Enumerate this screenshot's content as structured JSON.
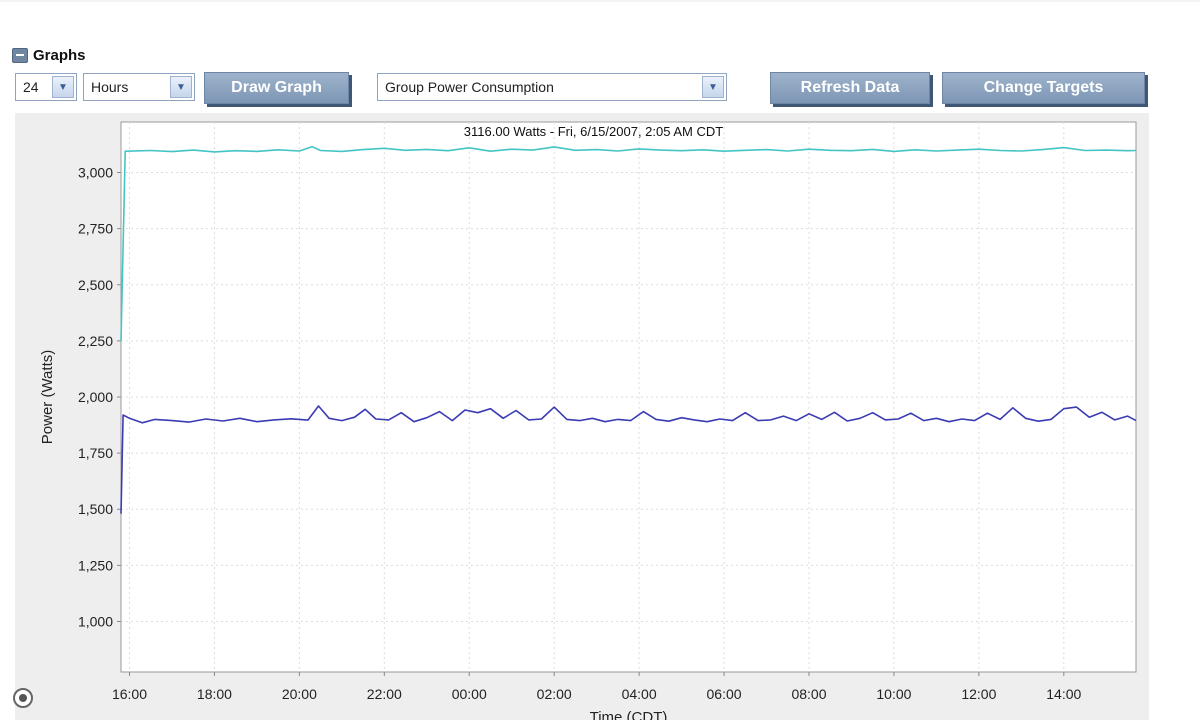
{
  "section": {
    "title": "Graphs",
    "collapse_icon": "minus-icon"
  },
  "controls": {
    "duration_value": "24",
    "unit_value": "Hours",
    "draw_graph_label": "Draw Graph",
    "graph_type_value": "Group Power Consumption",
    "refresh_label": "Refresh Data",
    "change_targets_label": "Change Targets",
    "dropdown_icon": "chevron-down-icon"
  },
  "chart_data": {
    "type": "line",
    "title": "3116.00 Watts - Fri, 6/15/2007, 2:05 AM CDT",
    "xlabel": "Time (CDT)",
    "ylabel": "Power (Watts)",
    "ylim": [
      775,
      3225
    ],
    "yticks": [
      1000,
      1250,
      1500,
      1750,
      2000,
      2250,
      2500,
      2750,
      3000
    ],
    "ytick_labels": [
      "1,000",
      "1,250",
      "1,500",
      "1,750",
      "2,000",
      "2,250",
      "2,500",
      "2,750",
      "3,000"
    ],
    "xlim": [
      15.8,
      39.7
    ],
    "xticks": [
      16,
      18,
      20,
      22,
      24,
      26,
      28,
      30,
      32,
      34,
      36,
      38
    ],
    "xtick_labels": [
      "16:00",
      "18:00",
      "20:00",
      "22:00",
      "00:00",
      "02:00",
      "04:00",
      "06:00",
      "08:00",
      "10:00",
      "12:00",
      "14:00"
    ],
    "grid": true,
    "series": [
      {
        "color": "#45c4c4",
        "x": [
          15.8,
          15.9,
          16.5,
          17.0,
          17.5,
          18.0,
          18.5,
          19.0,
          19.5,
          20.0,
          20.3,
          20.5,
          21.0,
          21.5,
          22.0,
          22.5,
          23.0,
          23.5,
          24.0,
          24.5,
          25.0,
          25.5,
          26.0,
          26.5,
          27.0,
          27.5,
          28.0,
          28.5,
          29.0,
          29.5,
          30.0,
          30.5,
          31.0,
          31.5,
          32.0,
          32.5,
          33.0,
          33.5,
          34.0,
          34.5,
          35.0,
          35.5,
          36.0,
          36.5,
          37.0,
          37.5,
          38.0,
          38.5,
          39.0,
          39.5,
          39.7
        ],
        "values": [
          2250,
          3095,
          3098,
          3093,
          3100,
          3092,
          3097,
          3094,
          3101,
          3096,
          3115,
          3098,
          3094,
          3102,
          3108,
          3099,
          3103,
          3097,
          3110,
          3095,
          3104,
          3100,
          3114,
          3099,
          3102,
          3096,
          3105,
          3100,
          3097,
          3101,
          3095,
          3099,
          3102,
          3096,
          3104,
          3099,
          3097,
          3103,
          3094,
          3101,
          3096,
          3100,
          3104,
          3098,
          3096,
          3102,
          3111,
          3098,
          3100,
          3097,
          3098
        ]
      },
      {
        "color": "#3b3bb3",
        "x": [
          15.8,
          15.85,
          16.0,
          16.3,
          16.6,
          17.0,
          17.4,
          17.8,
          18.2,
          18.6,
          19.0,
          19.4,
          19.8,
          20.2,
          20.45,
          20.7,
          21.0,
          21.3,
          21.55,
          21.8,
          22.1,
          22.4,
          22.7,
          23.0,
          23.3,
          23.6,
          23.9,
          24.2,
          24.5,
          24.8,
          25.1,
          25.4,
          25.7,
          26.0,
          26.3,
          26.6,
          26.9,
          27.2,
          27.5,
          27.8,
          28.1,
          28.4,
          28.7,
          29.0,
          29.3,
          29.6,
          29.9,
          30.2,
          30.5,
          30.8,
          31.1,
          31.4,
          31.7,
          32.0,
          32.3,
          32.6,
          32.9,
          33.2,
          33.5,
          33.8,
          34.1,
          34.4,
          34.7,
          35.0,
          35.3,
          35.6,
          35.9,
          36.2,
          36.5,
          36.8,
          37.1,
          37.4,
          37.7,
          38.0,
          38.3,
          38.6,
          38.9,
          39.2,
          39.5,
          39.7
        ],
        "values": [
          1480,
          1920,
          1905,
          1885,
          1900,
          1895,
          1888,
          1902,
          1893,
          1905,
          1890,
          1898,
          1903,
          1897,
          1960,
          1905,
          1895,
          1910,
          1945,
          1902,
          1898,
          1930,
          1890,
          1908,
          1935,
          1895,
          1942,
          1930,
          1948,
          1905,
          1940,
          1898,
          1902,
          1955,
          1900,
          1895,
          1905,
          1890,
          1900,
          1895,
          1935,
          1900,
          1892,
          1908,
          1898,
          1890,
          1902,
          1895,
          1930,
          1895,
          1898,
          1915,
          1895,
          1925,
          1900,
          1932,
          1893,
          1905,
          1930,
          1898,
          1902,
          1928,
          1895,
          1905,
          1890,
          1902,
          1895,
          1928,
          1900,
          1952,
          1905,
          1892,
          1900,
          1948,
          1955,
          1910,
          1932,
          1898,
          1915,
          1895
        ]
      }
    ]
  }
}
